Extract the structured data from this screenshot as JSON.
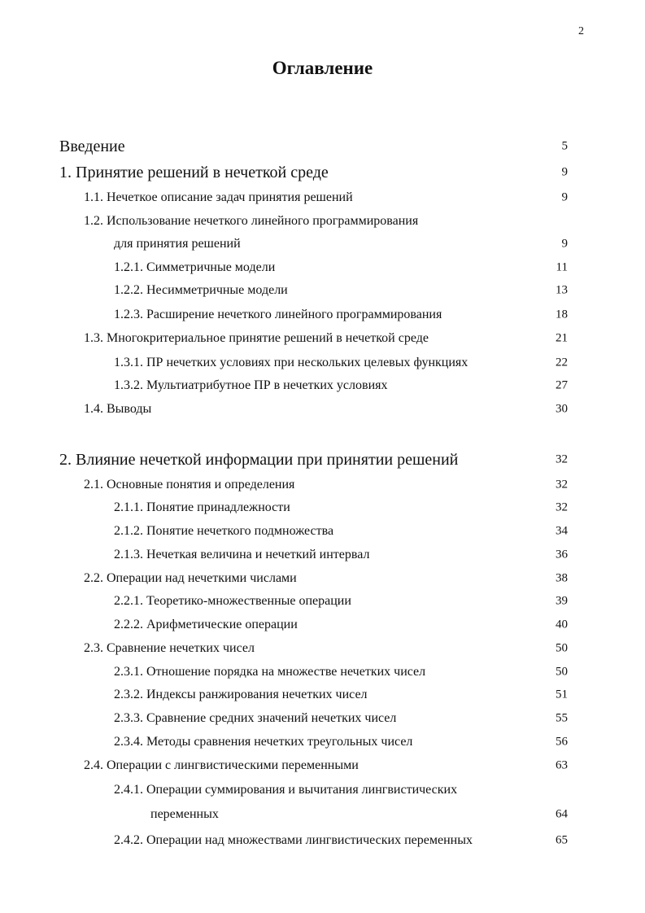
{
  "page_number": "2",
  "title": "Оглавление",
  "toc": [
    {
      "text": "Введение",
      "page": "5"
    },
    {
      "text": "1. Принятие решений в нечеткой среде",
      "page": "9"
    },
    {
      "text": "1.1. Нечеткое описание задач принятия решений",
      "page": "9"
    },
    {
      "text": "1.2. Использование нечеткого линейного программирования",
      "page": ""
    },
    {
      "text": "для принятия решений",
      "page": "9"
    },
    {
      "text": "1.2.1. Симметричные модели",
      "page": "11"
    },
    {
      "text": "1.2.2. Несимметричные модели",
      "page": "13"
    },
    {
      "text": "1.2.3. Расширение нечеткого линейного программирования",
      "page": "18"
    },
    {
      "text": "1.3. Многокритериальное принятие решений в нечеткой среде",
      "page": "21"
    },
    {
      "text": "1.3.1. ПР нечетких условиях при нескольких целевых функциях",
      "page": "22"
    },
    {
      "text": "1.3.2. Мультиатрибутное ПР в нечетких условиях",
      "page": "27"
    },
    {
      "text": "1.4. Выводы",
      "page": "30"
    },
    {
      "text": "2. Влияние нечеткой информации при принятии решений",
      "page": "32"
    },
    {
      "text": "2.1. Основные понятия и определения",
      "page": "32"
    },
    {
      "text": "2.1.1. Понятие принадлежности",
      "page": "32"
    },
    {
      "text": "2.1.2. Понятие нечеткого подмножества",
      "page": "34"
    },
    {
      "text": "2.1.3. Нечеткая величина и нечеткий интервал",
      "page": "36"
    },
    {
      "text": "2.2. Операции над нечеткими числами",
      "page": "38"
    },
    {
      "text": "2.2.1. Теоретико-множественные операции",
      "page": "39"
    },
    {
      "text": "2.2.2. Арифметические операции",
      "page": "40"
    },
    {
      "text": "2.3. Сравнение нечетких чисел",
      "page": "50"
    },
    {
      "text": "2.3.1. Отношение порядка на множестве нечетких чисел",
      "page": "50"
    },
    {
      "text": "2.3.2. Индексы ранжирования нечетких чисел",
      "page": "51"
    },
    {
      "text": "2.3.3. Сравнение средних значений нечетких чисел",
      "page": "55"
    },
    {
      "text": "2.3.4. Методы сравнения нечетких треугольных чисел",
      "page": "56"
    },
    {
      "text": "2.4. Операции с лингвистическими переменными",
      "page": "63"
    },
    {
      "text": "2.4.1. Операции суммирования и вычитания лингвистических",
      "page": ""
    },
    {
      "text": "переменных",
      "page": "64"
    },
    {
      "text": "2.4.2. Операции над множествами лингвистических переменных",
      "page": "65"
    }
  ]
}
